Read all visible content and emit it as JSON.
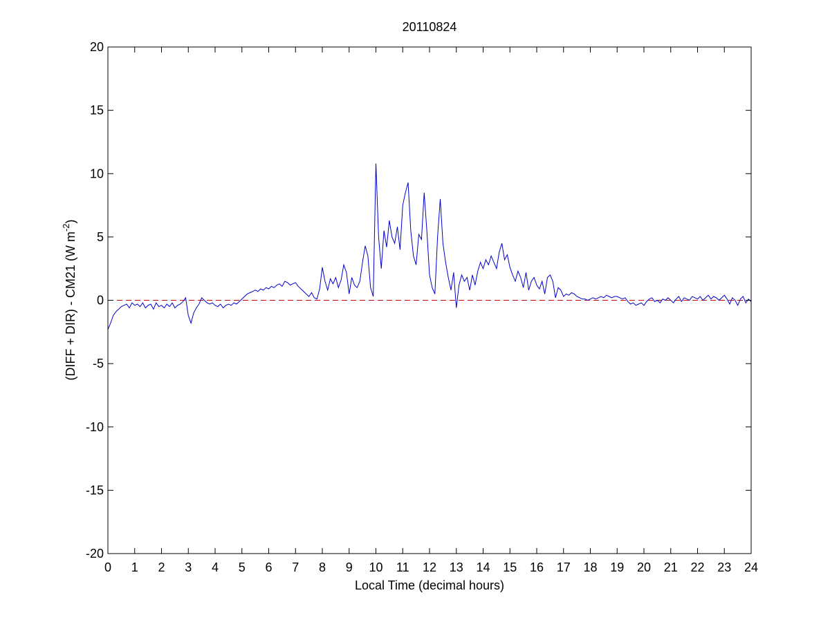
{
  "chart_data": {
    "type": "line",
    "title": "20110824",
    "xlabel": "Local Time (decimal hours)",
    "ylabel": "(DIFF + DIR) - CM21 (W m",
    "ylabel_superscript": "-2",
    "ylabel_end": ")",
    "xlim": [
      0,
      24
    ],
    "ylim": [
      -20,
      20
    ],
    "xticks": [
      0,
      1,
      2,
      3,
      4,
      5,
      6,
      7,
      8,
      9,
      10,
      11,
      12,
      13,
      14,
      15,
      16,
      17,
      18,
      19,
      20,
      21,
      22,
      23,
      24
    ],
    "yticks": [
      -20,
      -15,
      -10,
      -5,
      0,
      5,
      10,
      15,
      20
    ],
    "reference_line": {
      "y": 0,
      "color": "#c00000",
      "style": "dashed"
    },
    "x": [
      0,
      0.1,
      0.2,
      0.3,
      0.4,
      0.5,
      0.6,
      0.7,
      0.8,
      0.9,
      1,
      1.1,
      1.2,
      1.3,
      1.4,
      1.5,
      1.6,
      1.7,
      1.8,
      1.9,
      2,
      2.1,
      2.2,
      2.3,
      2.4,
      2.5,
      2.6,
      2.7,
      2.8,
      2.9,
      3,
      3.1,
      3.2,
      3.3,
      3.4,
      3.5,
      3.6,
      3.7,
      3.8,
      3.9,
      4,
      4.1,
      4.2,
      4.3,
      4.4,
      4.5,
      4.6,
      4.7,
      4.8,
      4.9,
      5,
      5.1,
      5.2,
      5.3,
      5.4,
      5.5,
      5.6,
      5.7,
      5.8,
      5.9,
      6,
      6.1,
      6.2,
      6.3,
      6.4,
      6.5,
      6.6,
      6.7,
      6.8,
      6.9,
      7,
      7.1,
      7.2,
      7.3,
      7.4,
      7.5,
      7.6,
      7.7,
      7.8,
      7.9,
      8,
      8.1,
      8.2,
      8.3,
      8.4,
      8.5,
      8.6,
      8.7,
      8.8,
      8.9,
      9,
      9.1,
      9.2,
      9.3,
      9.4,
      9.5,
      9.6,
      9.7,
      9.8,
      9.9,
      10,
      10.1,
      10.2,
      10.3,
      10.4,
      10.5,
      10.6,
      10.7,
      10.8,
      10.9,
      11,
      11.1,
      11.2,
      11.3,
      11.4,
      11.5,
      11.6,
      11.7,
      11.8,
      11.9,
      12,
      12.1,
      12.2,
      12.3,
      12.4,
      12.5,
      12.6,
      12.7,
      12.8,
      12.9,
      13,
      13.1,
      13.2,
      13.3,
      13.4,
      13.5,
      13.6,
      13.7,
      13.8,
      13.9,
      14,
      14.1,
      14.2,
      14.3,
      14.4,
      14.5,
      14.6,
      14.7,
      14.8,
      14.9,
      15,
      15.1,
      15.2,
      15.3,
      15.4,
      15.5,
      15.6,
      15.7,
      15.8,
      15.9,
      16,
      16.1,
      16.2,
      16.3,
      16.4,
      16.5,
      16.6,
      16.7,
      16.8,
      16.9,
      17,
      17.1,
      17.2,
      17.3,
      17.4,
      17.5,
      17.6,
      17.7,
      17.8,
      17.9,
      18,
      18.1,
      18.2,
      18.3,
      18.4,
      18.5,
      18.6,
      18.7,
      18.8,
      18.9,
      19,
      19.1,
      19.2,
      19.3,
      19.4,
      19.5,
      19.6,
      19.7,
      19.8,
      19.9,
      20,
      20.1,
      20.2,
      20.3,
      20.4,
      20.5,
      20.6,
      20.7,
      20.8,
      20.9,
      21,
      21.1,
      21.2,
      21.3,
      21.4,
      21.5,
      21.6,
      21.7,
      21.8,
      21.9,
      22,
      22.1,
      22.2,
      22.3,
      22.4,
      22.5,
      22.6,
      22.7,
      22.8,
      22.9,
      23,
      23.1,
      23.2,
      23.3,
      23.4,
      23.5,
      23.6,
      23.7,
      23.8,
      23.9,
      24
    ],
    "series": [
      {
        "color": "#0000cc",
        "values": [
          -2.3,
          -1.8,
          -1.2,
          -0.9,
          -0.7,
          -0.5,
          -0.4,
          -0.3,
          -0.6,
          -0.2,
          -0.4,
          -0.3,
          -0.5,
          -0.2,
          -0.6,
          -0.4,
          -0.3,
          -0.7,
          -0.2,
          -0.5,
          -0.4,
          -0.6,
          -0.3,
          -0.5,
          -0.2,
          -0.6,
          -0.4,
          -0.3,
          -0.1,
          0.2,
          -1.2,
          -1.8,
          -1.0,
          -0.6,
          -0.3,
          0.2,
          0.0,
          -0.2,
          -0.3,
          -0.2,
          -0.4,
          -0.5,
          -0.3,
          -0.6,
          -0.4,
          -0.3,
          -0.4,
          -0.2,
          -0.3,
          -0.1,
          0.1,
          0.3,
          0.5,
          0.6,
          0.7,
          0.8,
          0.7,
          0.9,
          0.8,
          1.0,
          0.9,
          1.1,
          1.0,
          1.2,
          1.3,
          1.1,
          1.5,
          1.4,
          1.2,
          1.3,
          1.4,
          1.1,
          0.9,
          0.7,
          0.5,
          0.3,
          0.6,
          0.2,
          0.1,
          0.9,
          2.6,
          1.5,
          0.8,
          1.7,
          1.3,
          1.8,
          1.0,
          1.6,
          2.8,
          2.2,
          0.5,
          1.8,
          1.2,
          1.0,
          1.5,
          3.0,
          4.3,
          3.5,
          1.0,
          0.3,
          10.8,
          5.0,
          2.5,
          5.5,
          4.2,
          6.3,
          5.0,
          4.5,
          5.8,
          4.0,
          7.5,
          8.5,
          9.3,
          5.5,
          3.5,
          2.8,
          5.2,
          4.8,
          8.5,
          5.5,
          2.0,
          1.0,
          0.5,
          5.0,
          8.0,
          4.5,
          3.0,
          1.8,
          0.8,
          2.2,
          -0.6,
          1.2,
          2.0,
          1.5,
          1.8,
          0.8,
          2.0,
          1.2,
          2.3,
          3.0,
          2.5,
          3.2,
          2.8,
          3.5,
          3.0,
          2.5,
          3.8,
          4.5,
          3.2,
          3.6,
          2.6,
          2.0,
          1.5,
          2.3,
          1.8,
          1.0,
          2.2,
          0.8,
          1.5,
          1.8,
          1.2,
          0.9,
          1.5,
          0.5,
          1.8,
          2.0,
          1.5,
          0.2,
          1.0,
          0.8,
          0.3,
          0.5,
          0.4,
          0.6,
          0.5,
          0.3,
          0.2,
          0.1,
          0.1,
          0.0,
          0.1,
          0.2,
          0.1,
          0.2,
          0.3,
          0.2,
          0.4,
          0.3,
          0.2,
          0.3,
          0.3,
          0.2,
          0.1,
          0.2,
          -0.1,
          -0.3,
          -0.2,
          -0.4,
          -0.3,
          -0.2,
          -0.4,
          -0.1,
          0.1,
          0.2,
          -0.1,
          0.0,
          -0.2,
          0.1,
          0.0,
          0.2,
          0.0,
          -0.2,
          0.1,
          0.3,
          -0.1,
          0.2,
          0.1,
          0.0,
          0.3,
          0.2,
          0.1,
          0.3,
          0.0,
          0.2,
          0.4,
          0.1,
          0.3,
          0.2,
          0.0,
          0.2,
          0.4,
          0.1,
          -0.3,
          0.2,
          0.0,
          -0.4,
          0.1,
          0.3,
          -0.2,
          0.1,
          -0.1
        ]
      }
    ]
  }
}
